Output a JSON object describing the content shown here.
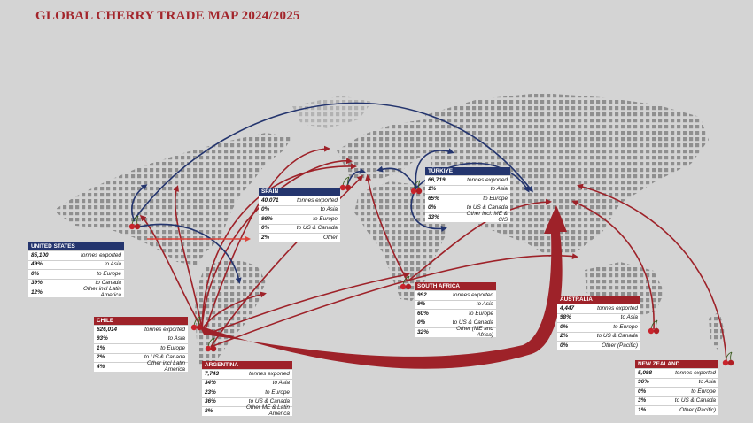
{
  "title": "GLOBAL CHERRY TRADE MAP 2024/2025",
  "colors": {
    "export_red": "#9e2229",
    "export_blue": "#24356e",
    "land_dot": "#8c8c8c",
    "background": "#d4d4d4",
    "title": "#a3252b"
  },
  "countries": [
    {
      "id": "united-states",
      "name": "UNITED STATES",
      "color": "blue",
      "rows": [
        {
          "value": "85,100",
          "label": "tonnes exported"
        },
        {
          "value": "49%",
          "label": "to Asia"
        },
        {
          "value": "0%",
          "label": "to Europe"
        },
        {
          "value": "39%",
          "label": "to Canada"
        },
        {
          "value": "12%",
          "label": "Other incl Latin America"
        }
      ]
    },
    {
      "id": "spain",
      "name": "SPAIN",
      "color": "blue",
      "rows": [
        {
          "value": "40,071",
          "label": "tonnes exported"
        },
        {
          "value": "0%",
          "label": "to Asia"
        },
        {
          "value": "98%",
          "label": "to Europe"
        },
        {
          "value": "0%",
          "label": "to US & Canada"
        },
        {
          "value": "2%",
          "label": "Other"
        }
      ]
    },
    {
      "id": "turkiye",
      "name": "TÜRKIYE",
      "color": "blue",
      "rows": [
        {
          "value": "66,719",
          "label": "tonnes exported"
        },
        {
          "value": "1%",
          "label": "to Asia"
        },
        {
          "value": "65%",
          "label": "to Europe"
        },
        {
          "value": "0%",
          "label": "to US & Canada"
        },
        {
          "value": "33%",
          "label": "Other incl. ME & CIS"
        }
      ]
    },
    {
      "id": "chile",
      "name": "CHILE",
      "color": "red",
      "rows": [
        {
          "value": "626,014",
          "label": "tonnes exported"
        },
        {
          "value": "93%",
          "label": "to Asia"
        },
        {
          "value": "1%",
          "label": "to Europe"
        },
        {
          "value": "2%",
          "label": "to US & Canada"
        },
        {
          "value": "4%",
          "label": "Other incl Latin America"
        }
      ]
    },
    {
      "id": "argentina",
      "name": "ARGENTINA",
      "color": "red",
      "rows": [
        {
          "value": "7,743",
          "label": "tonnes exported"
        },
        {
          "value": "34%",
          "label": "to Asia"
        },
        {
          "value": "23%",
          "label": "to Europe"
        },
        {
          "value": "36%",
          "label": "to US & Canada"
        },
        {
          "value": "8%",
          "label": "Other ME & Latin America"
        }
      ]
    },
    {
      "id": "south-africa",
      "name": "SOUTH AFRICA",
      "color": "red",
      "rows": [
        {
          "value": "992",
          "label": "tonnes exported"
        },
        {
          "value": "9%",
          "label": "to Asia"
        },
        {
          "value": "60%",
          "label": "to Europe"
        },
        {
          "value": "0%",
          "label": "to US & Canada"
        },
        {
          "value": "32%",
          "label": "Other (ME and Africa)"
        }
      ]
    },
    {
      "id": "australia",
      "name": "AUSTRALIA",
      "color": "red",
      "rows": [
        {
          "value": "4,447",
          "label": "tonnes exported"
        },
        {
          "value": "98%",
          "label": "to Asia"
        },
        {
          "value": "0%",
          "label": "to Europe"
        },
        {
          "value": "2%",
          "label": "to US & Canada"
        },
        {
          "value": "0%",
          "label": "Other (Pacific)"
        }
      ]
    },
    {
      "id": "new-zealand",
      "name": "NEW ZEALAND",
      "color": "red",
      "rows": [
        {
          "value": "5,098",
          "label": "tonnes exported"
        },
        {
          "value": "96%",
          "label": "to Asia"
        },
        {
          "value": "0%",
          "label": "to Europe"
        },
        {
          "value": "3%",
          "label": "to US & Canada"
        },
        {
          "value": "1%",
          "label": "Other (Pacific)"
        }
      ]
    }
  ]
}
